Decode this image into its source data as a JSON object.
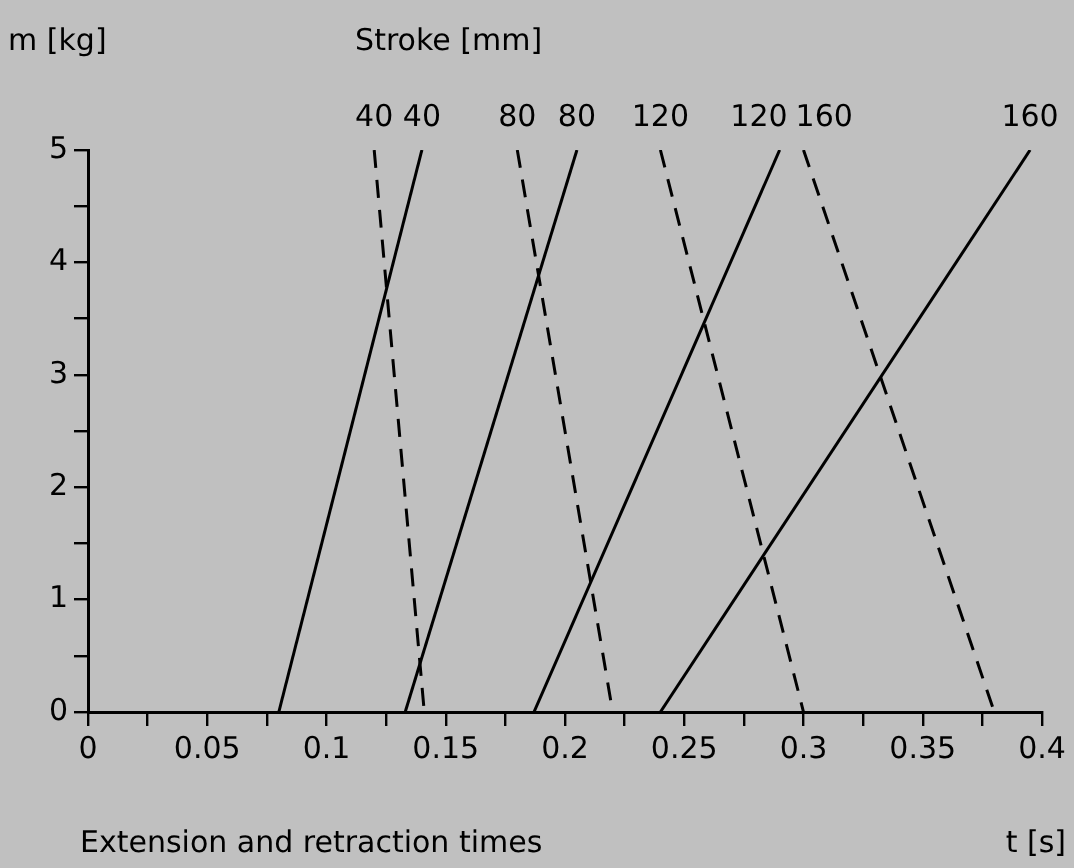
{
  "chart_data": {
    "type": "line",
    "xlabel": "t [s]",
    "ylabel": "m [kg]",
    "legend_title": "Stroke [mm]",
    "annotations": [
      "Extension and retraction times"
    ],
    "xlim": [
      0,
      0.4
    ],
    "ylim": [
      0,
      5
    ],
    "xticks": [
      0,
      {
        "value": 0.025,
        "label": null
      },
      0.05,
      {
        "value": 0.075,
        "label": null
      },
      0.1,
      {
        "value": 0.125,
        "label": null
      },
      0.15,
      {
        "value": 0.175,
        "label": null
      },
      0.2,
      {
        "value": 0.225,
        "label": null
      },
      0.25,
      {
        "value": 0.275,
        "label": null
      },
      0.3,
      {
        "value": 0.325,
        "label": null
      },
      0.35,
      {
        "value": 0.375,
        "label": null
      },
      0.4
    ],
    "yticks": [
      0,
      {
        "value": 0.5,
        "label": null
      },
      1,
      {
        "value": 1.5,
        "label": null
      },
      2,
      {
        "value": 2.5,
        "label": null
      },
      3,
      {
        "value": 3.5,
        "label": null
      },
      4,
      {
        "value": 4.5,
        "label": null
      },
      5
    ],
    "grid": false,
    "legend": false,
    "marker": "none",
    "series": [
      {
        "name": "40",
        "color": "#000000",
        "line_style": "dashed",
        "x": [
          0.12,
          0.141
        ],
        "values": [
          5,
          0
        ]
      },
      {
        "name": "40",
        "color": "#000000",
        "line_style": "solid",
        "x": [
          0.08,
          0.14
        ],
        "values": [
          0,
          5
        ]
      },
      {
        "name": "80",
        "color": "#000000",
        "line_style": "dashed",
        "x": [
          0.18,
          0.22
        ],
        "values": [
          5,
          0
        ]
      },
      {
        "name": "80",
        "color": "#000000",
        "line_style": "solid",
        "x": [
          0.133,
          0.205
        ],
        "values": [
          0,
          5
        ]
      },
      {
        "name": "120",
        "color": "#000000",
        "line_style": "dashed",
        "x": [
          0.24,
          0.3
        ],
        "values": [
          5,
          0
        ]
      },
      {
        "name": "120",
        "color": "#000000",
        "line_style": "solid",
        "x": [
          0.187,
          0.29
        ],
        "values": [
          0,
          5
        ]
      },
      {
        "name": "160",
        "color": "#000000",
        "line_style": "dashed",
        "x": [
          0.3,
          0.38
        ],
        "values": [
          5,
          0
        ]
      },
      {
        "name": "160",
        "color": "#000000",
        "line_style": "solid",
        "x": [
          0.24,
          0.395
        ],
        "values": [
          0,
          5
        ]
      }
    ]
  }
}
